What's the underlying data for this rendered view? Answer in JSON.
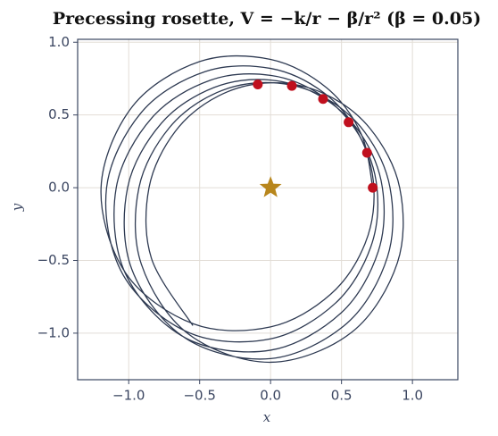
{
  "chart_data": {
    "type": "line",
    "title": "Precessing rosette, V = −k/r − β/r² (β = 0.05)",
    "xlabel": "x",
    "ylabel": "y",
    "xlim": [
      -1.36,
      1.32
    ],
    "ylim": [
      -1.32,
      1.02
    ],
    "xticks": [
      {
        "value": -1,
        "label": "−1.0"
      },
      {
        "value": -0.5,
        "label": "−0.5"
      },
      {
        "value": 0,
        "label": "0.0"
      },
      {
        "value": 0.5,
        "label": "0.5"
      },
      {
        "value": 1,
        "label": "1.0"
      }
    ],
    "yticks": [
      {
        "value": -1,
        "label": "−1.0"
      },
      {
        "value": -0.5,
        "label": "−0.5"
      },
      {
        "value": 0,
        "label": "0.0"
      },
      {
        "value": 0.5,
        "label": "0.5"
      },
      {
        "value": 1,
        "label": "1.0"
      }
    ],
    "grid": true,
    "orbit": {
      "color": "#2e3a52",
      "x": [
        0.72,
        0.639,
        0.396,
        0,
        -0.5,
        -0.972,
        -1.195,
        -1.02,
        -0.541,
        0,
        0.423,
        0.666,
        0.728,
        0.625,
        0.376,
        0,
        -0.461,
        -0.906,
        -1.156,
        -1.039,
        -0.575,
        0,
        0.458,
        0.706,
        0.75,
        0.624,
        0.364,
        0,
        -0.426,
        -0.835,
        -1.088,
        -1.023,
        -0.597,
        0,
        0.497,
        0.759,
        0.788,
        0.637,
        0.36,
        0,
        -0.398,
        -0.769,
        -1.008,
        -0.977,
        -0.598,
        0,
        0.538,
        0.824,
        0.842,
        0.663,
        0.363,
        0,
        -0.378,
        -0.714,
        -0.928,
        -0.911,
        -0.58,
        0,
        0.573,
        0.894,
        0.91,
        0.702,
        0.374,
        0,
        -0.365,
        -0.671,
        -0.857,
        -0.84,
        -0.548
      ],
      "y": [
        0,
        0.369,
        0.686,
        0.882,
        0.867,
        0.561,
        0,
        -0.589,
        -0.937,
        -0.957,
        -0.733,
        -0.384,
        0,
        0.361,
        0.652,
        0.82,
        0.798,
        0.523,
        0,
        -0.6,
        -0.997,
        -1.039,
        -0.793,
        -0.408,
        0,
        0.36,
        0.631,
        0.772,
        0.738,
        0.482,
        0,
        -0.591,
        -1.034,
        -1.117,
        -0.861,
        -0.438,
        0,
        0.368,
        0.624,
        0.74,
        0.689,
        0.444,
        0,
        -0.564,
        -1.036,
        -1.175,
        -0.932,
        -0.476,
        0,
        0.383,
        0.629,
        0.722,
        0.654,
        0.412,
        0,
        -0.526,
        -1.005,
        -1.2,
        -0.993,
        -0.516,
        0,
        0.406,
        0.648,
        0.721,
        0.632,
        0.388,
        0,
        -0.485,
        -0.948
      ]
    },
    "periapsides": {
      "color": "#c0101e",
      "x": [
        0.72,
        0.68,
        0.55,
        0.37,
        0.15,
        -0.09
      ],
      "y": [
        0,
        0.24,
        0.45,
        0.61,
        0.7,
        0.71
      ]
    },
    "center": {
      "color": "#b8861c",
      "x": 0,
      "y": 0
    }
  }
}
